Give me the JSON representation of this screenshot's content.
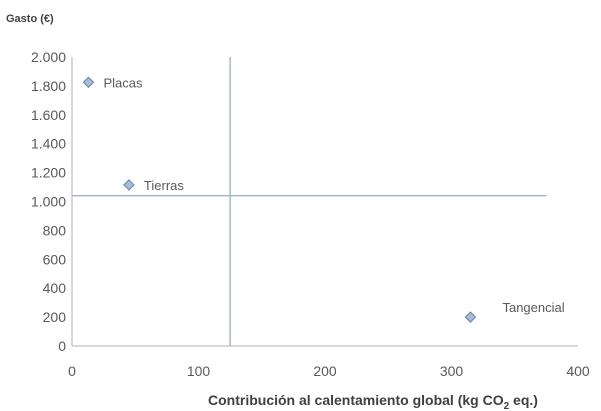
{
  "chart_data": {
    "type": "scatter",
    "title": "",
    "ylabel": "Gasto (€)",
    "xlabel_main": "Contribución al calentamiento global (kg CO",
    "xlabel_sub": "2",
    "xlabel_tail": " eq.)",
    "xlim": [
      0,
      400
    ],
    "ylim": [
      0,
      2000
    ],
    "x_ticks": [
      0,
      100,
      200,
      300,
      400
    ],
    "x_tick_labels": [
      "0",
      "100",
      "200",
      "300",
      "400"
    ],
    "y_ticks": [
      0,
      200,
      400,
      600,
      800,
      1000,
      1200,
      1400,
      1600,
      1800,
      2000
    ],
    "y_tick_labels": [
      "0",
      "200",
      "400",
      "600",
      "800",
      "1.000",
      "1.200",
      "1.400",
      "1.600",
      "1.800",
      "2.000"
    ],
    "points": [
      {
        "label": "Placas",
        "x": 13,
        "y": 1825
      },
      {
        "label": "Tierras",
        "x": 45,
        "y": 1115
      },
      {
        "label": "Tangencial",
        "x": 315,
        "y": 200
      }
    ],
    "reference_lines": {
      "vertical_x": 125,
      "horizontal_y": 1040
    },
    "grid": false,
    "legend": "none",
    "colors": {
      "marker_fill": "#a9bcd8",
      "marker_stroke": "#6f8cb5",
      "reference_line": "#9fb3cc"
    }
  }
}
